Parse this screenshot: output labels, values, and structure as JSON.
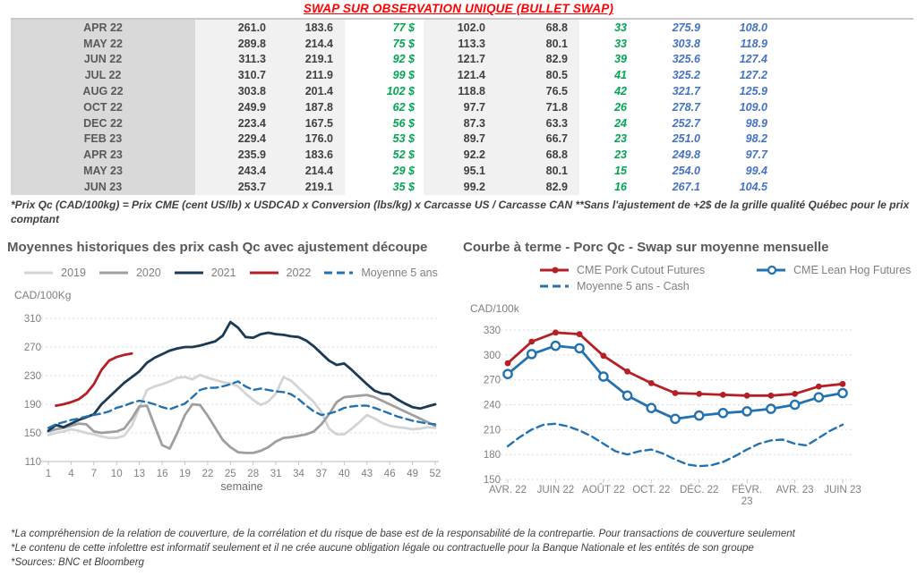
{
  "title": "SWAP SUR OBSERVATION UNIQUE (BULLET SWAP)",
  "table": {
    "rows": [
      [
        "APR 22",
        "261.0",
        "183.6",
        "77 $",
        "102.0",
        "68.8",
        "33",
        "275.9",
        "108.0"
      ],
      [
        "MAY 22",
        "289.8",
        "214.4",
        "75 $",
        "113.3",
        "80.1",
        "33",
        "303.8",
        "118.9"
      ],
      [
        "JUN 22",
        "311.3",
        "219.1",
        "92 $",
        "121.7",
        "82.9",
        "39",
        "325.6",
        "127.4"
      ],
      [
        "JUL 22",
        "310.7",
        "211.9",
        "99 $",
        "121.4",
        "80.5",
        "41",
        "325.2",
        "127.2"
      ],
      [
        "AUG 22",
        "303.8",
        "201.4",
        "102 $",
        "118.8",
        "76.5",
        "42",
        "321.7",
        "125.9"
      ],
      [
        "OCT 22",
        "249.9",
        "187.8",
        "62 $",
        "97.7",
        "71.8",
        "26",
        "278.7",
        "109.0"
      ],
      [
        "DEC 22",
        "223.4",
        "167.5",
        "56 $",
        "87.3",
        "63.3",
        "24",
        "252.7",
        "98.9"
      ],
      [
        "FEB 23",
        "229.4",
        "176.0",
        "53 $",
        "89.7",
        "66.7",
        "23",
        "251.0",
        "98.2"
      ],
      [
        "APR 23",
        "235.9",
        "183.6",
        "52 $",
        "92.2",
        "68.8",
        "23",
        "249.8",
        "97.7"
      ],
      [
        "MAY 23",
        "243.4",
        "214.4",
        "29 $",
        "95.1",
        "80.1",
        "15",
        "254.0",
        "99.4"
      ],
      [
        "JUN 23",
        "253.7",
        "219.1",
        "35 $",
        "99.2",
        "82.9",
        "16",
        "267.1",
        "104.5"
      ]
    ]
  },
  "footnote": "*Prix Qc (CAD/100kg) = Prix CME (cent US/lb) x USDCAD x Conversion (lbs/kg) x Carcasse US / Carcasse CAN **Sans l'ajustement de +2$ de la grille qualité Québec pour le prix comptant",
  "chart_data": [
    {
      "type": "line",
      "title": "Moyennes historiques des prix cash Qc avec ajustement découpe",
      "y_unit": "CAD/100Kg",
      "xlabel": "semaine",
      "x_range": [
        1,
        52
      ],
      "ylim": [
        110,
        310
      ],
      "yticks": [
        110,
        150,
        190,
        230,
        270,
        310
      ],
      "xticks": [
        1,
        4,
        7,
        10,
        13,
        16,
        19,
        22,
        25,
        28,
        31,
        34,
        37,
        40,
        43,
        46,
        49,
        52
      ],
      "grid": true,
      "legend_position": "top",
      "series": [
        {
          "name": "2019",
          "color": "#d4d4d4",
          "values": [
            147,
            150,
            152,
            155,
            153,
            150,
            148,
            145,
            143,
            143,
            146,
            160,
            185,
            210,
            215,
            218,
            222,
            227,
            228,
            225,
            231,
            227,
            224,
            221,
            219,
            215,
            205,
            196,
            189,
            194,
            205,
            228,
            223,
            213,
            203,
            193,
            179,
            156,
            148,
            148,
            156,
            165,
            175,
            170,
            164,
            160,
            158,
            157,
            155,
            156,
            158,
            157
          ]
        },
        {
          "name": "2020",
          "color": "#9f9f9f",
          "values": [
            152,
            155,
            157,
            160,
            163,
            162,
            152,
            150,
            151,
            152,
            156,
            170,
            187,
            188,
            160,
            133,
            128,
            150,
            175,
            190,
            189,
            174,
            157,
            140,
            130,
            123,
            122,
            122,
            125,
            130,
            138,
            143,
            144,
            146,
            148,
            152,
            162,
            176,
            193,
            200,
            201,
            202,
            203,
            200,
            195,
            190,
            185,
            180,
            175,
            170,
            165,
            160
          ]
        },
        {
          "name": "2021",
          "color": "#1a3a55",
          "values": [
            153,
            161,
            158,
            163,
            168,
            172,
            176,
            190,
            200,
            210,
            220,
            228,
            236,
            248,
            255,
            260,
            265,
            268,
            270,
            270,
            272,
            275,
            278,
            286,
            305,
            297,
            284,
            283,
            288,
            290,
            288,
            287,
            285,
            284,
            279,
            271,
            261,
            251,
            245,
            247,
            238,
            228,
            218,
            209,
            205,
            204,
            197,
            191,
            186,
            184,
            187,
            190
          ]
        },
        {
          "name": "2022",
          "color": "#b42025",
          "values": [
            null,
            188,
            190,
            193,
            197,
            205,
            218,
            238,
            251,
            256,
            259,
            261
          ]
        },
        {
          "name": "Moyenne 5 ans",
          "color": "#2272b2",
          "dash": true,
          "values": [
            157,
            162,
            165,
            168,
            170,
            173,
            175,
            177,
            180,
            185,
            188,
            192,
            195,
            193,
            190,
            186,
            183,
            187,
            191,
            200,
            210,
            213,
            213,
            215,
            218,
            222,
            215,
            210,
            212,
            210,
            208,
            207,
            204,
            197,
            188,
            180,
            175,
            177,
            180,
            185,
            187,
            188,
            188,
            185,
            181,
            177,
            173,
            170,
            167,
            165,
            163,
            162
          ]
        }
      ]
    },
    {
      "type": "line",
      "title": "Courbe à terme - Porc Qc - Swap sur moyenne mensuelle",
      "y_unit": "CAD/100k",
      "x_range": [
        0,
        14
      ],
      "ylim": [
        150,
        330
      ],
      "yticks": [
        150,
        180,
        210,
        240,
        270,
        300,
        330
      ],
      "xticks": [
        {
          "v": 0,
          "label": "AVR. 22"
        },
        {
          "v": 2,
          "label": "JUIN 22"
        },
        {
          "v": 4,
          "label": "AOÛT 22"
        },
        {
          "v": 6,
          "label": "OCT. 22"
        },
        {
          "v": 8,
          "label": "DÉC. 22"
        },
        {
          "v": 10,
          "label": "FÉVR.\n23"
        },
        {
          "v": 12,
          "label": "AVR. 23"
        },
        {
          "v": 14,
          "label": "JUIN 23"
        }
      ],
      "grid": true,
      "legend_position": "top",
      "series": [
        {
          "name": "CME Pork Cutout Futures",
          "color": "#b42025",
          "marker": "filled",
          "values": [
            290,
            316,
            327,
            325,
            299,
            280,
            266,
            254,
            253,
            252,
            251,
            251,
            253,
            262,
            265
          ]
        },
        {
          "name": "CME Lean Hog Futures",
          "color": "#2272b2",
          "marker": "open",
          "values": [
            277,
            301,
            311,
            308,
            274,
            251,
            236,
            223,
            227,
            230,
            232,
            235,
            240,
            249,
            254
          ]
        },
        {
          "name": "Moyenne 5 ans - Cash",
          "color": "#2272b2",
          "dash": true,
          "xstep": 0.5,
          "values": [
            190,
            201,
            210,
            216,
            217,
            214,
            209,
            202,
            193,
            184,
            180,
            184,
            186,
            181,
            174,
            168,
            166,
            167,
            171,
            178,
            186,
            193,
            197,
            198,
            193,
            191,
            200,
            209,
            216
          ]
        }
      ]
    }
  ],
  "footer": {
    "lines": [
      "*La compréhension de la relation de couverture, de la corrélation et du risque de base est de la responsabilité de la contrepartie. Pour transactions de couverture seulement",
      "*Le contenu de cette infolettre est informatif seulement et il ne crée aucune obligation légale ou contractuelle pour la Banque Nationale et les entités de son groupe",
      "*Sources: BNC et Bloomberg"
    ]
  }
}
